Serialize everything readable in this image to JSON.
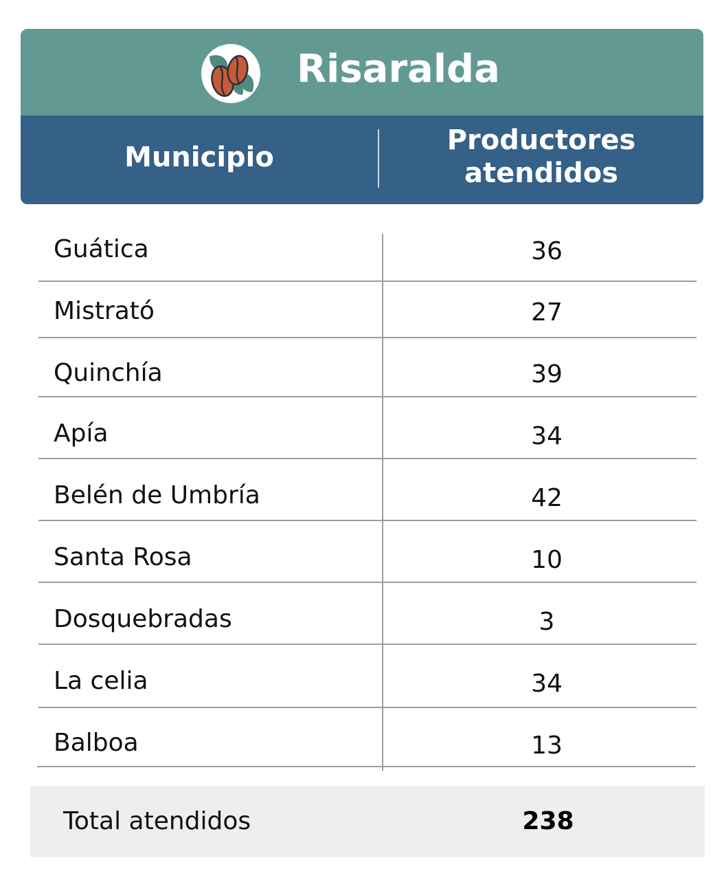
{
  "header": {
    "title": "Risaralda",
    "logo_icon": "coffee-beans-leaves-icon",
    "columns": [
      "Municipio",
      "Productores atendidos"
    ],
    "colors": {
      "title_band": "#629a93",
      "column_band": "#356087",
      "bean": "#c55b3c",
      "leaf": "#4f8b82"
    }
  },
  "rows": [
    {
      "municipio": "Guática",
      "productores": "36"
    },
    {
      "municipio": "Mistrató",
      "productores": "27"
    },
    {
      "municipio": "Quinchía",
      "productores": "39"
    },
    {
      "municipio": "Apía",
      "productores": "34"
    },
    {
      "municipio": "Belén de Umbría",
      "productores": "42"
    },
    {
      "municipio": "Santa Rosa",
      "productores": "10"
    },
    {
      "municipio": "Dosquebradas",
      "productores": "3"
    },
    {
      "municipio": "La celia",
      "productores": "34"
    },
    {
      "municipio": "Balboa",
      "productores": "13"
    }
  ],
  "total": {
    "label": "Total atendidos",
    "value": "238"
  }
}
